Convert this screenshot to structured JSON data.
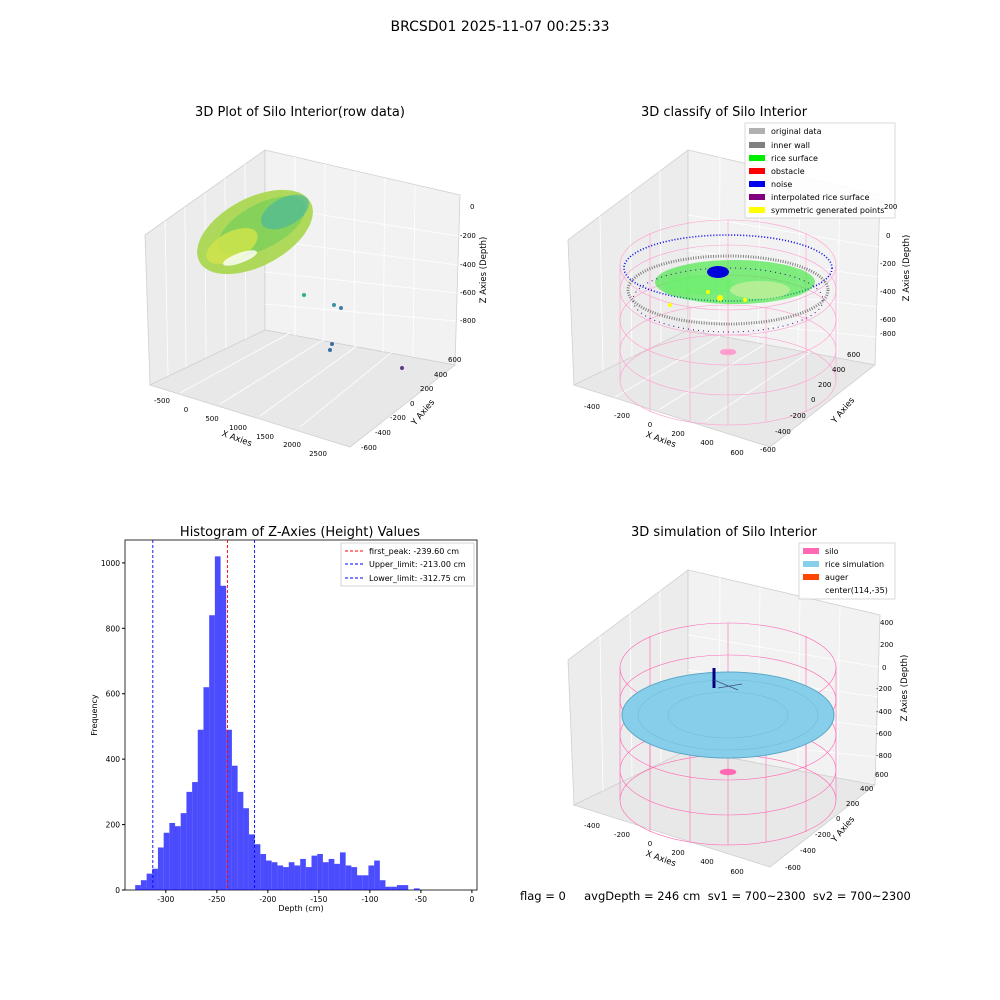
{
  "suptitle": "BRCSD01 2025-11-07 00:25:33",
  "panel1": {
    "title": "3D Plot of Silo Interior(row data)",
    "xlabel": "X Axies",
    "ylabel": "Y Axies",
    "zlabel": "Z Axies (Depth)",
    "xticks": [
      "-500",
      "0",
      "500",
      "1000",
      "1500",
      "2000",
      "2500"
    ],
    "yticks": [
      "600",
      "400",
      "200",
      "0",
      "-200",
      "-400",
      "-600"
    ],
    "zticks": [
      "0",
      "-200",
      "-400",
      "-600",
      "-800"
    ]
  },
  "panel2": {
    "title": "3D classify of Silo Interior",
    "xlabel": "X Axies",
    "ylabel": "Y Axies",
    "zlabel": "Z Axies (Depth)",
    "xticks": [
      "-400",
      "-200",
      "0",
      "200",
      "400",
      "600"
    ],
    "yticks": [
      "600",
      "400",
      "200",
      "0",
      "-200",
      "-400",
      "-600"
    ],
    "zticks": [
      "200",
      "0",
      "-200",
      "-400",
      "-600",
      "-800"
    ],
    "legend": [
      {
        "label": "original data",
        "color": "#b0b0b0"
      },
      {
        "label": "inner wall",
        "color": "#808080"
      },
      {
        "label": "rice surface",
        "color": "#00ee00"
      },
      {
        "label": "obstacle",
        "color": "#ff0000"
      },
      {
        "label": "noise",
        "color": "#0000ee"
      },
      {
        "label": "interpolated rice surface",
        "color": "#800080"
      },
      {
        "label": "symmetric generated points",
        "color": "#ffff00"
      }
    ]
  },
  "panel4": {
    "title": "3D simulation of Silo Interior",
    "xlabel": "X Axies",
    "ylabel": "Y Axies",
    "zlabel": "Z Axies (Depth)",
    "xticks": [
      "-400",
      "-200",
      "0",
      "200",
      "400",
      "600"
    ],
    "yticks": [
      "600",
      "400",
      "200",
      "0",
      "-200",
      "-400",
      "-600"
    ],
    "zticks": [
      "400",
      "200",
      "0",
      "-200",
      "-400",
      "-600",
      "-800"
    ],
    "legend": [
      {
        "label": "silo",
        "color": "#ff69b4"
      },
      {
        "label": "rice simulation",
        "color": "#87ceeb"
      },
      {
        "label": "auger",
        "color": "#ff4500"
      },
      {
        "label": "center(114,-35)",
        "color": ""
      }
    ]
  },
  "status_text": "flag = 0     avgDepth = 246 cm  sv1 = 700~2300  sv2 = 700~2300",
  "colors": {
    "hist_bar": "#0000ff",
    "peak_line": "#ff0000",
    "limit_line": "#0000ff"
  },
  "chart_data": {
    "type": "bar",
    "title": "Histogram of Z-Axies (Height) Values",
    "xlabel": "Depth (cm)",
    "ylabel": "Frequency",
    "xlim": [
      -340,
      5
    ],
    "ylim": [
      0,
      1070
    ],
    "xticks": [
      -300,
      -250,
      -200,
      -150,
      -100,
      -50,
      0
    ],
    "yticks": [
      0,
      200,
      400,
      600,
      800,
      1000
    ],
    "bin_width": 5.58,
    "bins_start": [
      -330,
      -324.4,
      -318.8,
      -313.3,
      -307.7,
      -302.1,
      -296.5,
      -291,
      -285.4,
      -279.8,
      -274.2,
      -268.7,
      -263.1,
      -257.5,
      -251.9,
      -246.4,
      -240.8,
      -235.2,
      -229.6,
      -224.1,
      -218.5,
      -212.9,
      -207.3,
      -201.8,
      -196.2,
      -190.6,
      -185,
      -179.5,
      -173.9,
      -168.3,
      -162.7,
      -157.2,
      -151.6,
      -146,
      -140.4,
      -134.9,
      -129.3,
      -123.7,
      -118.1,
      -112.6,
      -107,
      -101.4,
      -95.8,
      -90.3,
      -84.7,
      -79.1,
      -73.5,
      -68,
      -62.4,
      -56.8,
      -51.2,
      -45.7,
      -40.1,
      -34.5,
      -28.9,
      -23.4,
      -17.8,
      -12.2,
      -6.6,
      -1.1
    ],
    "counts": [
      15,
      30,
      50,
      65,
      130,
      175,
      205,
      195,
      235,
      300,
      330,
      490,
      620,
      840,
      1020,
      930,
      490,
      380,
      300,
      250,
      170,
      140,
      110,
      90,
      85,
      75,
      70,
      85,
      75,
      95,
      70,
      105,
      110,
      85,
      95,
      80,
      115,
      75,
      70,
      45,
      45,
      75,
      90,
      30,
      10,
      10,
      15,
      15,
      0,
      5,
      0,
      0,
      0,
      0,
      0,
      0,
      0,
      0,
      0,
      0
    ],
    "lines": [
      {
        "label": "first_peak: -239.60 cm",
        "x": -239.6,
        "color": "#ff0000"
      },
      {
        "label": "Upper_limit: -213.00 cm",
        "x": -213.0,
        "color": "#0000ff"
      },
      {
        "label": "Lower_limit: -312.75 cm",
        "x": -312.75,
        "color": "#0000ff"
      }
    ]
  }
}
